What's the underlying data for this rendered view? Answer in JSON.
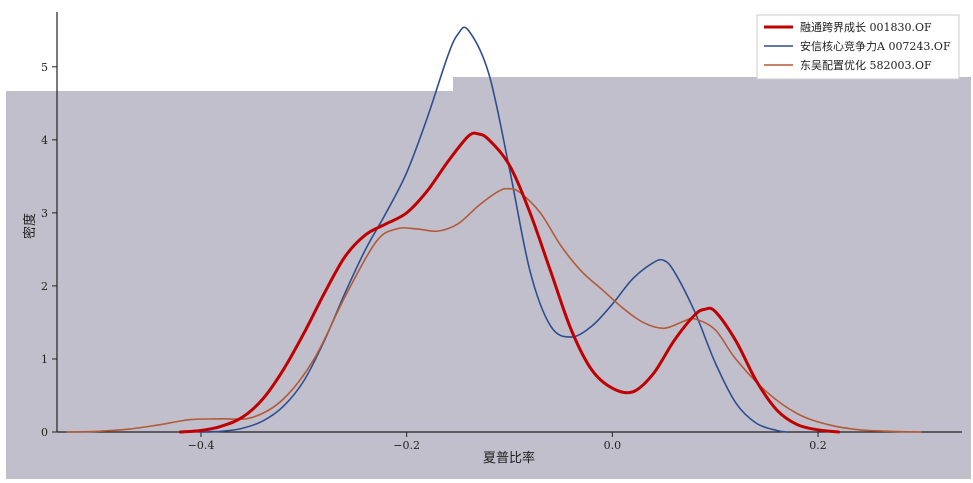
{
  "chart_data": {
    "type": "line",
    "title": "",
    "xlabel": "夏普比率",
    "ylabel": "密度",
    "xlim": [
      -0.54,
      0.34
    ],
    "ylim": [
      0,
      5.75
    ],
    "x_ticks": [
      -0.4,
      -0.2,
      0.0,
      0.2
    ],
    "x_tick_labels": [
      "−0.4",
      "−0.2",
      "0.0",
      "0.2"
    ],
    "y_ticks": [
      0,
      1,
      2,
      3,
      4,
      5
    ],
    "y_tick_labels": [
      "0",
      "1",
      "2",
      "3",
      "4",
      "5"
    ],
    "grid": false,
    "legend_position": "top-right",
    "colors": {
      "background": "#c1bfcc",
      "axis": "#222222"
    },
    "series": [
      {
        "name": "融通跨界成长 001830.OF",
        "color": "#c00000",
        "width": 3,
        "x": [
          -0.42,
          -0.4,
          -0.38,
          -0.36,
          -0.34,
          -0.32,
          -0.3,
          -0.28,
          -0.26,
          -0.24,
          -0.22,
          -0.2,
          -0.18,
          -0.16,
          -0.14,
          -0.13,
          -0.12,
          -0.1,
          -0.08,
          -0.06,
          -0.04,
          -0.02,
          0.0,
          0.02,
          0.04,
          0.06,
          0.08,
          0.09,
          0.1,
          0.12,
          0.14,
          0.16,
          0.18,
          0.2,
          0.22
        ],
        "y": [
          0.0,
          0.02,
          0.08,
          0.2,
          0.45,
          0.85,
          1.35,
          1.9,
          2.4,
          2.7,
          2.85,
          3.0,
          3.3,
          3.7,
          4.05,
          4.08,
          4.0,
          3.65,
          3.0,
          2.2,
          1.4,
          0.85,
          0.6,
          0.55,
          0.8,
          1.25,
          1.6,
          1.68,
          1.65,
          1.25,
          0.7,
          0.3,
          0.1,
          0.03,
          0.0
        ]
      },
      {
        "name": "安信核心竞争力A 007243.OF",
        "color": "#2e4f8f",
        "width": 1.6,
        "x": [
          -0.4,
          -0.38,
          -0.36,
          -0.34,
          -0.32,
          -0.3,
          -0.28,
          -0.26,
          -0.24,
          -0.22,
          -0.2,
          -0.18,
          -0.16,
          -0.15,
          -0.14,
          -0.12,
          -0.1,
          -0.08,
          -0.06,
          -0.04,
          -0.02,
          0.0,
          0.02,
          0.04,
          0.05,
          0.06,
          0.08,
          0.1,
          0.12,
          0.14,
          0.16,
          0.17
        ],
        "y": [
          0.0,
          0.01,
          0.05,
          0.15,
          0.35,
          0.7,
          1.25,
          1.9,
          2.5,
          3.0,
          3.55,
          4.3,
          5.15,
          5.45,
          5.5,
          4.9,
          3.6,
          2.2,
          1.45,
          1.3,
          1.45,
          1.75,
          2.1,
          2.32,
          2.35,
          2.2,
          1.65,
          0.95,
          0.4,
          0.12,
          0.02,
          0.0
        ]
      },
      {
        "name": "东吴配置优化 582003.OF",
        "color": "#b35a38",
        "width": 1.6,
        "x": [
          -0.53,
          -0.5,
          -0.47,
          -0.44,
          -0.41,
          -0.38,
          -0.35,
          -0.32,
          -0.29,
          -0.26,
          -0.23,
          -0.21,
          -0.19,
          -0.17,
          -0.15,
          -0.13,
          -0.11,
          -0.1,
          -0.09,
          -0.07,
          -0.05,
          -0.03,
          -0.01,
          0.01,
          0.03,
          0.05,
          0.07,
          0.08,
          0.1,
          0.12,
          0.15,
          0.18,
          0.21,
          0.24,
          0.27,
          0.3
        ],
        "y": [
          0.0,
          0.01,
          0.04,
          0.1,
          0.17,
          0.18,
          0.2,
          0.45,
          1.0,
          1.85,
          2.6,
          2.78,
          2.78,
          2.75,
          2.85,
          3.1,
          3.3,
          3.33,
          3.28,
          3.0,
          2.55,
          2.2,
          1.95,
          1.7,
          1.5,
          1.42,
          1.52,
          1.55,
          1.4,
          1.0,
          0.55,
          0.25,
          0.1,
          0.03,
          0.01,
          0.0
        ]
      }
    ]
  }
}
